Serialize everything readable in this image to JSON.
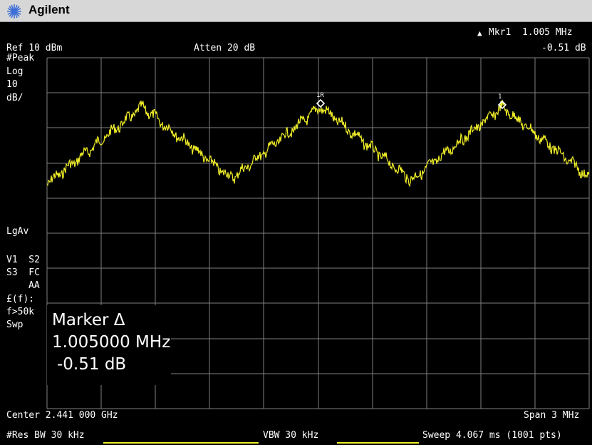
{
  "app": {
    "brand": "Agilent"
  },
  "header": {
    "marker_readout": "Mkr1  1.005 MHz",
    "marker_delta_symbol": "▲",
    "marker_value": "-0.51 dB",
    "ref_level": "Ref 10 dBm",
    "attenuation": "Atten 20 dB"
  },
  "left_panel": {
    "detector": "#Peak",
    "scale_type": "Log",
    "scale_value": "10",
    "scale_unit": "dB/",
    "averaging": "LgAv",
    "line1": "V1  S2",
    "line2": "S3  FC",
    "line3": "AA",
    "ftun": "£(f):",
    "ftun_cond": "f>50k",
    "sweep": "Swp"
  },
  "marker_box": {
    "title": "Marker Δ",
    "frequency": "1.005000 MHz",
    "amplitude": "-0.51 dB"
  },
  "markers": {
    "ref_label": "1R",
    "delta_label": "1"
  },
  "footer": {
    "center": "Center 2.441 000 GHz",
    "span": "Span 3 MHz",
    "rbw": "#Res BW 30 kHz",
    "vbw": "VBW 30 kHz",
    "sweep": "Sweep 4.067 ms (1001 pts)"
  },
  "colors": {
    "trace": "#f2f028",
    "grid": "#7f7f7f",
    "background": "#000000"
  }
}
